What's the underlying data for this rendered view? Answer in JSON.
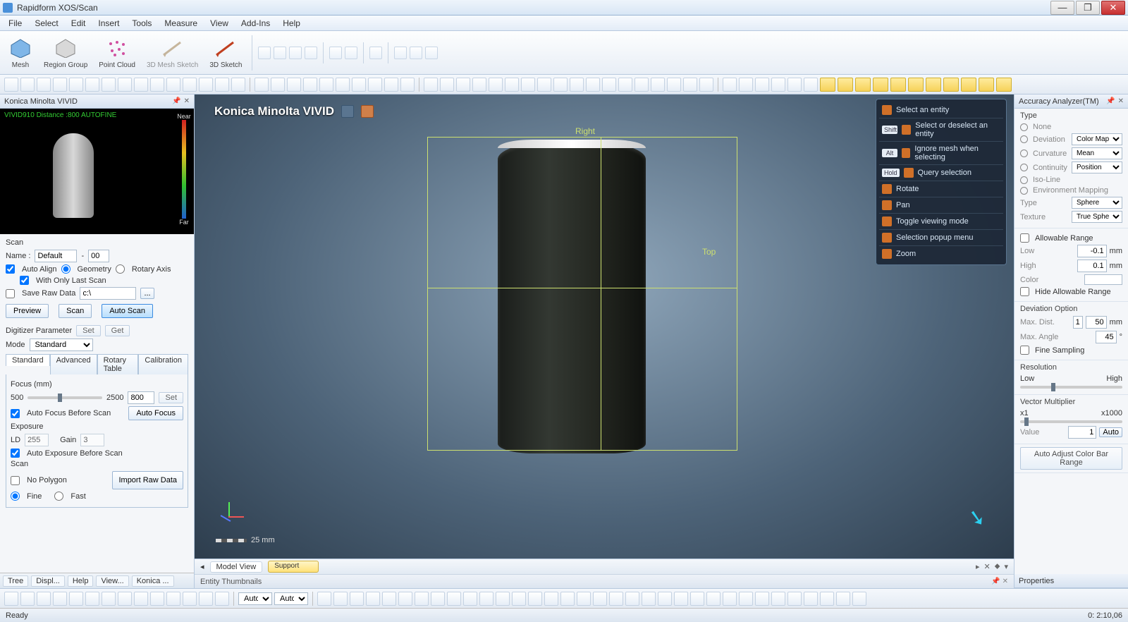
{
  "app": {
    "title": "Rapidform XOS/Scan"
  },
  "menu": [
    "File",
    "Select",
    "Edit",
    "Insert",
    "Tools",
    "Measure",
    "View",
    "Add-Ins",
    "Help"
  ],
  "ribbon": [
    {
      "label": "Mesh"
    },
    {
      "label": "Region Group"
    },
    {
      "label": "Point Cloud"
    },
    {
      "label": "3D Mesh Sketch"
    },
    {
      "label": "3D Sketch"
    }
  ],
  "leftPanel": {
    "title": "Konica Minolta VIVID",
    "previewOverlay": "VIVID910 Distance :800 AUTOFINE",
    "near": "Near",
    "far": "Far",
    "scanHdr": "Scan",
    "nameLbl": "Name :",
    "nameVal": "Default",
    "nameNum": "00",
    "autoAlign": "Auto Align",
    "geometry": "Geometry",
    "rotaryAxis": "Rotary Axis",
    "withOnlyLast": "With Only Last Scan",
    "saveRaw": "Save Raw Data",
    "saveRawPath": "c:\\",
    "preview": "Preview",
    "scan": "Scan",
    "autoScan": "Auto Scan",
    "digParam": "Digitizer Parameter",
    "set": "Set",
    "get": "Get",
    "mode": "Mode",
    "modeVal": "Standard",
    "tabs": [
      "Standard",
      "Advanced",
      "Rotary Table",
      "Calibration"
    ],
    "focus": "Focus (mm)",
    "focusLow": "500",
    "focusHigh": "2500",
    "focusVal": "800",
    "autoFocusBefore": "Auto Focus Before Scan",
    "autoFocus": "Auto Focus",
    "exposure": "Exposure",
    "ld": "LD",
    "ldVal": "255",
    "gain": "Gain",
    "gainVal": "3",
    "autoExposureBefore": "Auto Exposure Before Scan",
    "noPolygon": "No Polygon",
    "fine": "Fine",
    "fast": "Fast",
    "importRaw": "Import Raw Data",
    "bottomTabs": [
      "Tree",
      "Displ...",
      "Help",
      "View...",
      "Konica ..."
    ]
  },
  "viewport": {
    "title": "Konica Minolta VIVID",
    "right": "Right",
    "top": "Top",
    "scale": "25 mm",
    "context": [
      {
        "key": "",
        "txt": "Select an entity"
      },
      {
        "key": "Shift",
        "txt": "Select or deselect an entity"
      },
      {
        "key": "Alt",
        "txt": "Ignore mesh when selecting"
      },
      {
        "key": "Hold",
        "txt": "Query selection"
      },
      {
        "key": "",
        "txt": "Rotate"
      },
      {
        "key": "",
        "txt": "Pan"
      },
      {
        "key": "",
        "txt": "Toggle viewing mode"
      },
      {
        "key": "",
        "txt": "Selection popup menu"
      },
      {
        "key": "",
        "txt": "Zoom"
      }
    ],
    "viewTabs": [
      "Model View",
      "Support"
    ],
    "thumbs": "Entity Thumbnails"
  },
  "rightPanel": {
    "title": "Accuracy Analyzer(TM)",
    "typeHdr": "Type",
    "types": [
      "None",
      "Deviation",
      "Curvature",
      "Continuity",
      "Iso-Line",
      "Environment Mapping"
    ],
    "devSel": "Color Map",
    "curvSel": "Mean",
    "contSel": "Position",
    "envType": "Type",
    "envTypeVal": "Sphere",
    "envTex": "Texture",
    "envTexVal": "True Sphere",
    "allowRange": "Allowable Range",
    "low": "Low",
    "lowVal": "-0.1",
    "high": "High",
    "highVal": "0.1",
    "mm": "mm",
    "color": "Color",
    "hideAllow": "Hide Allowable Range",
    "devOpt": "Deviation Option",
    "maxDist": "Max. Dist.",
    "maxDistI": "1",
    "maxDistVal": "50",
    "maxAng": "Max. Angle",
    "maxAngVal": "45",
    "deg": "°",
    "fineSample": "Fine Sampling",
    "resolution": "Resolution",
    "resLow": "Low",
    "resHigh": "High",
    "vecMult": "Vector Multiplier",
    "x1": "x1",
    "x1000": "x1000",
    "value": "Value",
    "valueVal": "1",
    "auto": "Auto",
    "autoAdjust": "Auto Adjust Color Bar Range",
    "properties": "Properties"
  },
  "toolbar3": {
    "auto": "Auto"
  },
  "status": {
    "ready": "Ready",
    "time": "0: 2:10,06"
  }
}
